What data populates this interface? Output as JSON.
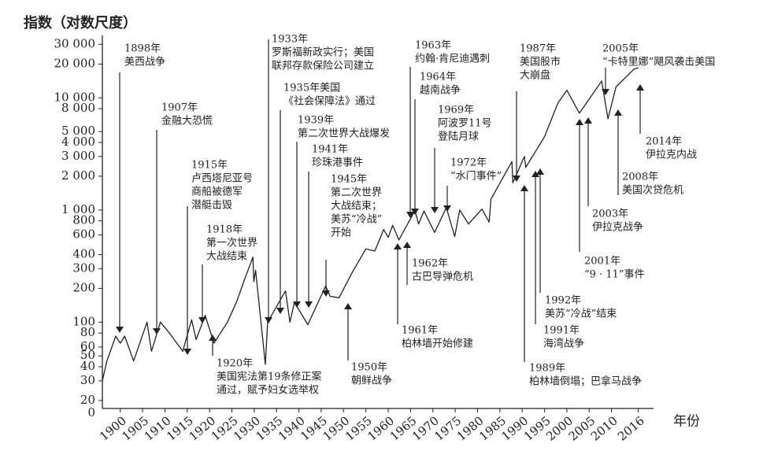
{
  "chart_data": {
    "type": "line",
    "y_label": "指数（对数尺度）",
    "x_label": "年份",
    "log_y": true,
    "y_origin_label": "0",
    "xlim": [
      1896,
      2018
    ],
    "ylim": [
      17,
      36000
    ],
    "xticks": [
      1900,
      1905,
      1910,
      1915,
      1920,
      1925,
      1930,
      1935,
      1940,
      1945,
      1950,
      1955,
      1960,
      1965,
      1970,
      1975,
      1980,
      1985,
      1990,
      1995,
      2000,
      2005,
      2010,
      2016
    ],
    "yticks": [
      {
        "value": 30000,
        "label": "30 000"
      },
      {
        "value": 20000,
        "label": "20 000"
      },
      {
        "value": 10000,
        "label": "10 000"
      },
      {
        "value": 8000,
        "label": "8 000"
      },
      {
        "value": 5000,
        "label": "5 000"
      },
      {
        "value": 4000,
        "label": "4 000"
      },
      {
        "value": 3000,
        "label": "3 000"
      },
      {
        "value": 2000,
        "label": "2 000"
      },
      {
        "value": 1000,
        "label": "1 000"
      },
      800,
      600,
      400,
      300,
      200,
      100,
      80,
      60,
      50,
      40,
      30,
      20
    ],
    "series": [
      {
        "color": "#222222",
        "x": [
          1896,
          1897,
          1899,
          1900,
          1901,
          1903,
          1906,
          1907,
          1909,
          1911,
          1914,
          1916,
          1917,
          1919,
          1921,
          1924,
          1926,
          1928,
          1929.7,
          1929.9,
          1930.3,
          1932.5,
          1933,
          1937,
          1938,
          1939,
          1942,
          1946,
          1947,
          1949,
          1952,
          1955,
          1957,
          1959,
          1960,
          1961,
          1962.4,
          1966,
          1966.8,
          1968,
          1970.4,
          1973,
          1974.9,
          1976,
          1978,
          1981,
          1982.6,
          1983,
          1987.7,
          1987.9,
          1990.5,
          1990.8,
          1995,
          1998,
          2000,
          2002.8,
          2007.8,
          2009.2,
          2011,
          2013,
          2015,
          2016
        ],
        "values": [
          30,
          45,
          75,
          65,
          75,
          45,
          100,
          55,
          100,
          80,
          55,
          105,
          70,
          115,
          65,
          100,
          150,
          250,
          380,
          230,
          290,
          42,
          100,
          190,
          100,
          150,
          95,
          210,
          170,
          165,
          280,
          450,
          430,
          670,
          570,
          730,
          540,
          990,
          750,
          980,
          630,
          1050,
          580,
          1000,
          750,
          1020,
          780,
          1250,
          2700,
          1750,
          3000,
          2400,
          4500,
          9000,
          11700,
          7300,
          14100,
          6500,
          12500,
          15000,
          18000,
          18500
        ]
      }
    ],
    "annotations": [
      [
        "1898年",
        "美西战争"
      ],
      [
        "1907年",
        "金融大恐慌"
      ],
      [
        "1915年",
        "卢西塔尼亚号",
        "商船被德军",
        "潜艇击毁"
      ],
      [
        "1918年",
        "第一次世界",
        "大战结束"
      ],
      [
        "1920年",
        "美国宪法第19条修正案",
        "通过，赋予妇女选举权"
      ],
      [
        "1933年",
        "罗斯福新政实行；美国",
        "联邦存款保险公司建立"
      ],
      [
        "1935年美国",
        "《社会保障法》通过"
      ],
      [
        "1939年",
        "第二次世界大战爆发"
      ],
      [
        "1941年",
        "珍珠港事件"
      ],
      [
        "1945年",
        "第二次世界",
        "大战结束；",
        "美苏“冷战”",
        "开始"
      ],
      [
        "1950年",
        "朝鲜战争"
      ],
      [
        "1961年",
        "柏林墙开始修建"
      ],
      [
        "1962年",
        "古巴导弹危机"
      ],
      [
        "1963年",
        "约翰·肯尼迪遇刺"
      ],
      [
        "1964年",
        "越南战争"
      ],
      [
        "1969年",
        "阿波罗11号",
        "登陆月球"
      ],
      [
        "1972年",
        "“水门事件”"
      ],
      [
        "1987年",
        "美国股市",
        "大崩盘"
      ],
      [
        "1989年",
        "柏林墙倒塌；巴拿马战争"
      ],
      [
        "1991年",
        "海湾战争"
      ],
      [
        "1992年",
        "美苏“冷战”结束"
      ],
      [
        "2001年",
        "“9 · 11”事件"
      ],
      [
        "2003年",
        "伊拉克战争"
      ],
      [
        "2005年",
        "“卡特里娜”飓风袭击美国"
      ],
      [
        "2008年",
        "美国次贷危机"
      ],
      [
        "2014年",
        "伊拉克内战"
      ]
    ]
  }
}
